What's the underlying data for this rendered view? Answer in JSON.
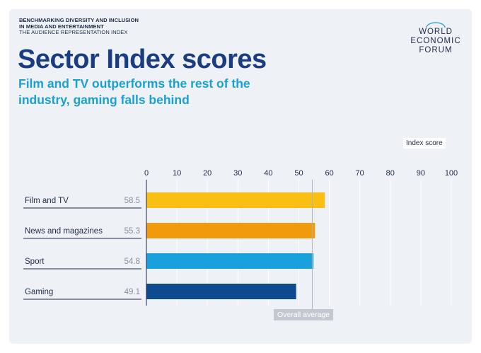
{
  "header": {
    "eyebrow_line1": "BENCHMARKING DIVERSITY AND INCLUSION",
    "eyebrow_line2": "IN MEDIA AND ENTERTAINMENT",
    "eyebrow_line3": "THE AUDIENCE REPRESENTATION INDEX",
    "title": "Sector Index scores",
    "subtitle": "Film and TV outperforms the rest of the industry, gaming falls behind"
  },
  "logo": {
    "line1": "WORLD",
    "line2": "ECONOMIC",
    "line3": "FORUM"
  },
  "colors": {
    "title": "#1a3c82",
    "subtitle": "#1aa1cf",
    "film_tv": "#f9bf12",
    "news": "#f09a0c",
    "sport": "#1aa1dc",
    "gaming": "#0d4a8e"
  },
  "chart_data": {
    "type": "bar",
    "orientation": "horizontal",
    "title": "Sector Index scores",
    "axis_label": "Index score",
    "xlim": [
      0,
      100
    ],
    "ticks": [
      0,
      10,
      20,
      30,
      40,
      50,
      60,
      70,
      80,
      90,
      100
    ],
    "categories": [
      "Film and TV",
      "News and magazines",
      "Sport",
      "Gaming"
    ],
    "values": [
      58.5,
      55.3,
      54.8,
      49.1
    ],
    "value_labels": [
      "58.5",
      "55.3",
      "54.8",
      "49.1"
    ],
    "bar_colors": [
      "#f9bf12",
      "#f09a0c",
      "#1aa1dc",
      "#0d4a8e"
    ],
    "reference_line": {
      "label": "Overall average",
      "value": 54.4
    }
  }
}
